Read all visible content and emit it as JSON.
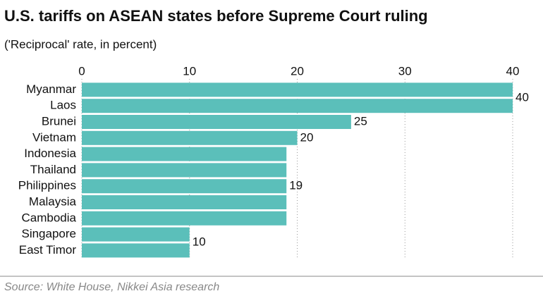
{
  "chart_data": {
    "type": "bar",
    "orientation": "horizontal",
    "title": "U.S. tariffs on ASEAN states before Supreme Court ruling",
    "subtitle": "('Reciprocal' rate, in percent)",
    "source": "Source: White House, Nikkei Asia research",
    "categories": [
      "Myanmar",
      "Laos",
      "Brunei",
      "Vietnam",
      "Indonesia",
      "Thailand",
      "Philippines",
      "Malaysia",
      "Cambodia",
      "Singapore",
      "East Timor"
    ],
    "values": [
      40,
      40,
      25,
      20,
      19,
      19,
      19,
      19,
      19,
      10,
      10
    ],
    "value_labels": [
      "40",
      null,
      "25",
      "20",
      null,
      null,
      "19",
      null,
      null,
      "10",
      null
    ],
    "color": "#5bbfba",
    "xlim": [
      0,
      40
    ],
    "xticks": [
      0,
      10,
      20,
      30,
      40
    ],
    "grid": true
  }
}
